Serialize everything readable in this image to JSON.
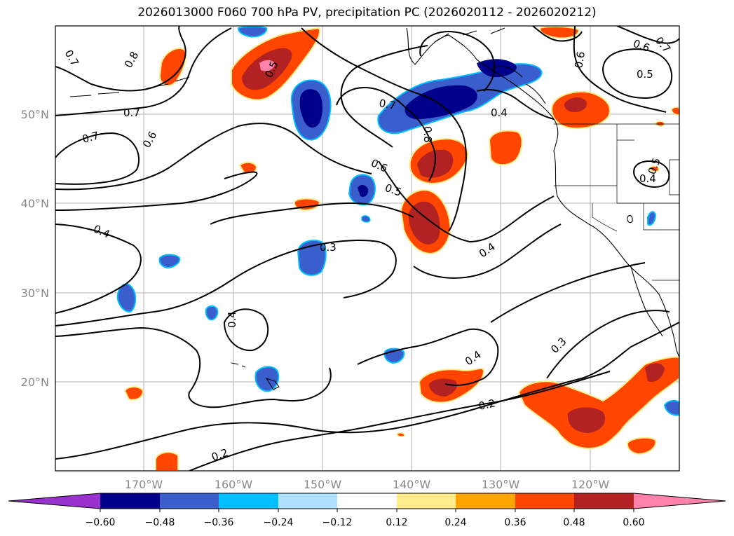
{
  "title": "2026013000 F060 700 hPa PV, precipitation PC (2026020112 - 2026020212)",
  "map": {
    "lat_labels": [
      "50°N",
      "40°N",
      "30°N",
      "20°N"
    ],
    "lon_labels": [
      "170°W",
      "160°W",
      "150°W",
      "140°W",
      "130°W",
      "120°W"
    ],
    "contour_labels": [
      {
        "text": "0.7"
      },
      {
        "text": "0.8"
      },
      {
        "text": "0.7"
      },
      {
        "text": "0.7"
      },
      {
        "text": "0.6"
      },
      {
        "text": "0.4"
      },
      {
        "text": "0.5"
      },
      {
        "text": "0.7"
      },
      {
        "text": "0.8"
      },
      {
        "text": "0.6"
      },
      {
        "text": "0.5"
      },
      {
        "text": "0.3"
      },
      {
        "text": "0.4"
      },
      {
        "text": "0.4"
      },
      {
        "text": "0.4"
      },
      {
        "text": "0.6"
      },
      {
        "text": "0.6"
      },
      {
        "text": "0.5"
      },
      {
        "text": "0.4"
      },
      {
        "text": "0.5"
      },
      {
        "text": "0.4"
      },
      {
        "text": "0.3"
      },
      {
        "text": "0.2"
      },
      {
        "text": "0.2"
      },
      {
        "text": "0.7"
      }
    ]
  },
  "colorbar": {
    "colors": [
      "#9932cc",
      "#00008b",
      "#3a5fcd",
      "#00bfff",
      "#b0e2ff",
      "#ffffff",
      "#ffec8b",
      "#ffa500",
      "#ff4500",
      "#b22222",
      "#ff82ab"
    ],
    "ticks": [
      "−0.60",
      "−0.48",
      "−0.36",
      "−0.24",
      "−0.12",
      "0.12",
      "0.24",
      "0.36",
      "0.48",
      "0.60"
    ]
  }
}
